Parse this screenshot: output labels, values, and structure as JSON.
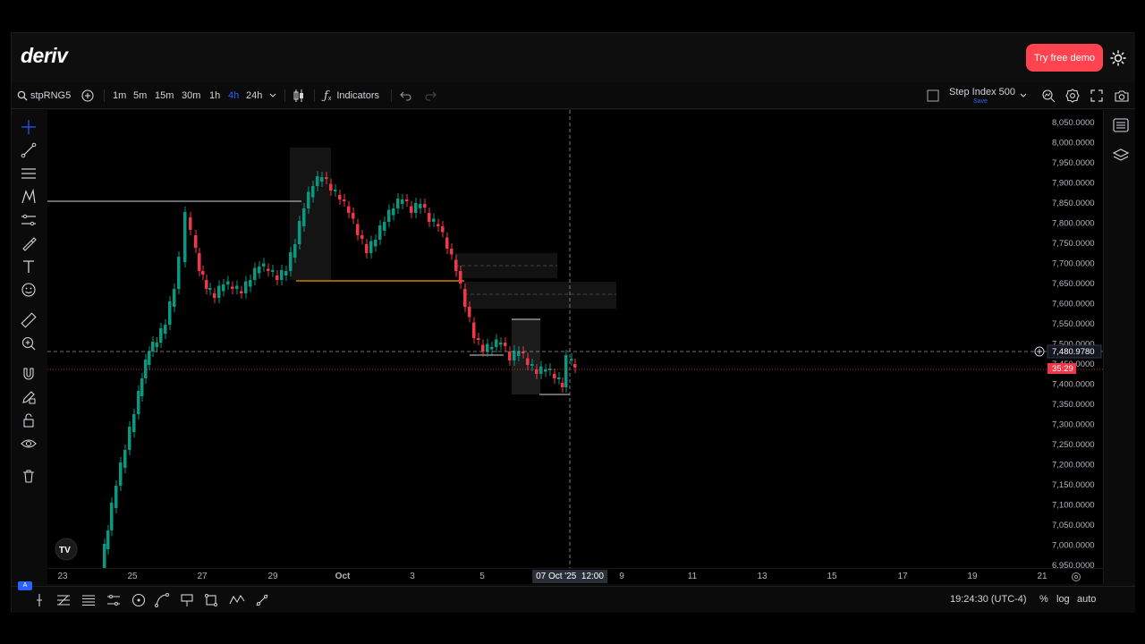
{
  "header": {
    "logo": "deriv",
    "demo_label": "Try free demo"
  },
  "toolbar": {
    "symbol": "stpRNG5",
    "intervals": [
      "1m",
      "5m",
      "15m",
      "30m",
      "1h",
      "4h",
      "24h"
    ],
    "active_interval": "4h",
    "indicators_label": "Indicators",
    "market_name": "Step Index 500",
    "market_sub": "Save"
  },
  "chart_data": {
    "type": "candlestick",
    "y_ticks": [
      "8,050.0000",
      "8,000.0000",
      "7,950.0000",
      "7,900.0000",
      "7,850.0000",
      "7,800.0000",
      "7,750.0000",
      "7,700.0000",
      "7,650.0000",
      "7,600.0000",
      "7,550.0000",
      "7,500.0000",
      "7,450.0000",
      "7,400.0000",
      "7,350.0000",
      "7,300.0000",
      "7,250.0000",
      "7,200.0000",
      "7,150.0000",
      "7,100.0000",
      "7,050.0000",
      "7,000.0000",
      "6,950.0000"
    ],
    "x_ticks": [
      "23",
      "25",
      "27",
      "29",
      "Oct",
      "3",
      "5",
      "9",
      "11",
      "13",
      "15",
      "17",
      "19",
      "21"
    ],
    "crosshair_x_label": "07 Oct '25  12:00",
    "crosshair_price": "7,480.9780",
    "last_price_label": "35:29",
    "last_price_partial": "7,450.0000",
    "colors": {
      "up": "#089981",
      "down": "#f23645",
      "crosshair": "#9598a1"
    }
  },
  "bottom": {
    "time": "19:24:30 (UTC-4)",
    "percent": "%",
    "log": "log",
    "auto": "auto",
    "lang_badge": "A"
  }
}
